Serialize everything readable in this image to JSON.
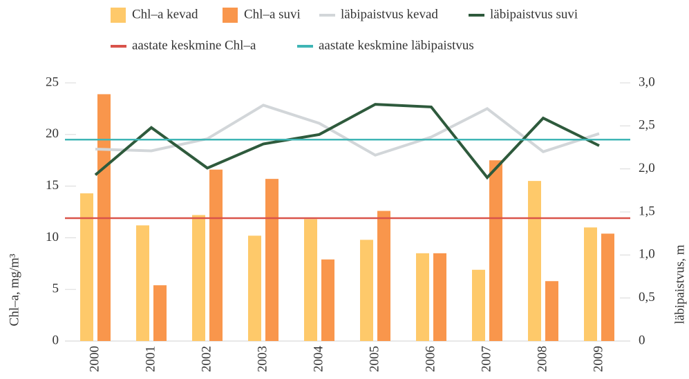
{
  "chart_data": {
    "type": "bar",
    "categories": [
      "2000",
      "2001",
      "2002",
      "2003",
      "2004",
      "2005",
      "2006",
      "2007",
      "2008",
      "2009"
    ],
    "series": [
      {
        "name": "Chl–a kevad",
        "type": "bar",
        "color": "#fec96a",
        "values": [
          14.3,
          11.2,
          12.2,
          10.2,
          11.8,
          9.8,
          8.5,
          6.9,
          15.5,
          11.0
        ]
      },
      {
        "name": "Chl–a suvi",
        "type": "bar",
        "color": "#f9964c",
        "values": [
          23.9,
          5.4,
          16.6,
          15.7,
          7.9,
          12.6,
          8.5,
          17.5,
          5.8,
          10.4
        ]
      },
      {
        "name": "läbipaistvus kevad",
        "type": "line",
        "axis": "y2",
        "color": "#d2d6d9",
        "values": [
          2.23,
          2.21,
          2.35,
          2.74,
          2.53,
          2.16,
          2.37,
          2.7,
          2.2,
          2.41
        ]
      },
      {
        "name": "läbipaistvus suvi",
        "type": "line",
        "axis": "y2",
        "color": "#2e5a3c",
        "values": [
          1.93,
          2.48,
          2.01,
          2.29,
          2.4,
          2.75,
          2.72,
          1.9,
          2.59,
          2.27
        ]
      },
      {
        "name": "aastate keskmine Chl–a",
        "type": "hline",
        "color": "#d9534a",
        "value": 11.9
      },
      {
        "name": "aastate keskmine läbipaistvus",
        "type": "hline",
        "axis": "y2",
        "color": "#3fb5b5",
        "value": 2.34
      }
    ],
    "ylabel": "Chl–a, mg/m³",
    "y2label": "läbipaistvus, m",
    "ylim": [
      0,
      25
    ],
    "yticks": [
      0,
      5,
      10,
      15,
      20,
      25
    ],
    "y2lim": [
      0,
      3
    ],
    "y2ticks": [
      0,
      {
        "value": 0.5,
        "label": "0,5"
      },
      {
        "value": 1,
        "label": "1,0"
      },
      {
        "value": 1.5,
        "label": "1,5"
      },
      {
        "value": 2,
        "label": "2,0"
      },
      {
        "value": 2.5,
        "label": "2,5"
      },
      {
        "value": 3,
        "label": "3,0"
      }
    ],
    "grid": false
  }
}
